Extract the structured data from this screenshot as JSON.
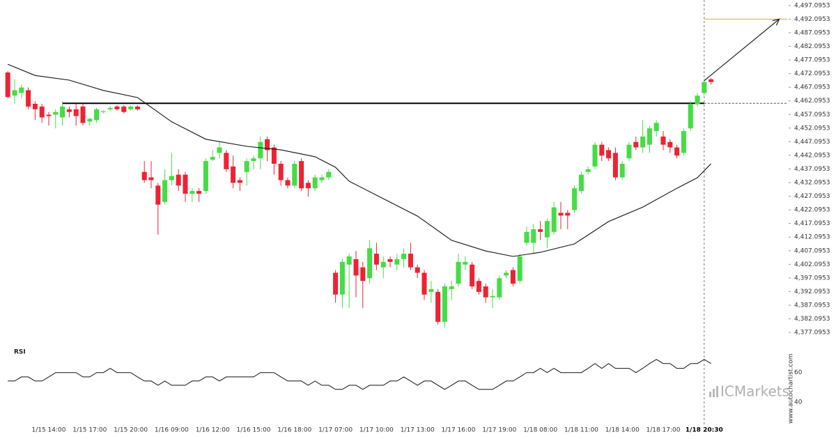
{
  "chart_data": {
    "type": "candlestick",
    "categories": [
      null,
      null,
      null,
      null,
      null,
      null,
      "1/15 14:00",
      null,
      null,
      null,
      null,
      null,
      "1/15 17:00",
      null,
      null,
      null,
      null,
      null,
      "1/15 20:00",
      null,
      null,
      null,
      null,
      null,
      "1/16 09:00",
      null,
      null,
      null,
      null,
      null,
      "1/16 12:00",
      null,
      null,
      null,
      null,
      null,
      "1/16 15:00",
      null,
      null,
      null,
      null,
      null,
      "1/16 18:00",
      null,
      null,
      null,
      null,
      null,
      "1/17 07:00",
      null,
      null,
      null,
      null,
      null,
      "1/17 10:00",
      null,
      null,
      null,
      null,
      null,
      "1/17 13:00",
      null,
      null,
      null,
      null,
      null,
      "1/17 16:00",
      null,
      null,
      null,
      null,
      null,
      "1/17 19:00",
      null,
      null,
      null,
      null,
      null,
      "1/18 08:00",
      null,
      null,
      null,
      null,
      null,
      "1/18 11:00",
      null,
      null,
      null,
      null,
      null,
      "1/18 14:00",
      null,
      null,
      null,
      null,
      null,
      "1/18 17:00",
      null,
      null,
      null,
      null,
      null,
      "1/18 20:30",
      null
    ],
    "open": [
      4472.5,
      4464,
      4465,
      4466,
      4461,
      4460,
      4457,
      4457,
      4456,
      4459,
      4459,
      4460,
      4454.5,
      4455,
      4458,
      4459,
      4460,
      4460,
      4459,
      4460,
      4436,
      4434,
      4431,
      4425,
      4433,
      4435,
      4435,
      4428,
      4429,
      4429,
      4440.5,
      4443,
      4443,
      4438,
      4433,
      4436,
      4440,
      4441,
      4448,
      4445,
      4439,
      4433,
      4431,
      4440,
      4432,
      4430,
      4433,
      4434,
      4399,
      4391,
      4402,
      4404,
      4401,
      4397,
      4406,
      4401,
      4404,
      4402,
      4404,
      4406,
      4401,
      4399,
      4392,
      4392,
      4381,
      4393,
      4395,
      4402,
      4402,
      4396,
      4394,
      4390,
      4390,
      4398,
      4400,
      4396,
      4410,
      4410,
      4415,
      4412,
      4414,
      4421,
      4421,
      4422,
      4429,
      4436,
      4438,
      4446,
      4444,
      4443,
      4434,
      4441,
      4447,
      4445,
      4446,
      4451,
      4449,
      4447,
      4445,
      4443,
      4452,
      4461,
      4465,
      4470
    ],
    "high": [
      4473,
      4470,
      4468,
      4467,
      4462,
      4461,
      4458,
      4459,
      4462,
      4460,
      4461,
      4461,
      4456,
      4459.5,
      4458.5,
      4460,
      4460.5,
      4460.5,
      4460.5,
      4460.5,
      4440,
      4440,
      4432,
      4437,
      4443,
      4437,
      4436,
      4430,
      4430,
      4441,
      4444,
      4447,
      4444,
      4442,
      4434,
      4441,
      4442,
      4449,
      4449,
      4446,
      4440,
      4434,
      4440,
      4441,
      4433,
      4435,
      4435,
      4437,
      4400,
      4404,
      4406,
      4407,
      4403,
      4411,
      4410,
      4405,
      4405,
      4406,
      4408,
      4410,
      4402,
      4400,
      4396,
      4393,
      4395,
      4396,
      4406,
      4405,
      4403,
      4397,
      4395,
      4393,
      4398,
      4400,
      4401,
      4406,
      4416,
      4417,
      4418,
      4419,
      4425,
      4425,
      4422,
      4431,
      4436,
      4438,
      4447,
      4447,
      4445,
      4445,
      4440,
      4447,
      4449,
      4455,
      4453,
      4455,
      4451,
      4448,
      4446,
      4452,
      4462,
      4465,
      4470,
      4470.5
    ],
    "low": [
      4463,
      4461,
      4463,
      4459,
      4455,
      4454,
      4453,
      4452,
      4453,
      4456,
      4453,
      4453,
      4453,
      4454,
      4457.5,
      4458.5,
      4458.5,
      4457.5,
      4458.5,
      4458.5,
      4432,
      4430,
      4413,
      4424,
      4431,
      4429,
      4425,
      4425,
      4425,
      4428,
      4440,
      4441,
      4436,
      4430,
      4429,
      4431,
      4437,
      4437,
      4440,
      4435,
      4431,
      4430,
      4430,
      4429,
      4427,
      4429,
      4432,
      4433,
      4388,
      4386,
      4386,
      4390,
      4386,
      4395,
      4400,
      4397,
      4401,
      4400,
      4401,
      4400,
      4397,
      4389,
      4388,
      4380,
      4379,
      4389,
      4394,
      4400,
      4393,
      4391,
      4388,
      4386,
      4389,
      4397,
      4394,
      4395,
      4409,
      4406,
      4411,
      4408,
      4413,
      4415,
      4415,
      4421,
      4428,
      4435,
      4437,
      4440,
      4440,
      4433,
      4433,
      4440,
      4444,
      4443,
      4443,
      4449,
      4444,
      4443,
      4441,
      4442,
      4451,
      4460,
      4464,
      4468
    ],
    "close": [
      4463.5,
      4466,
      4467,
      4460,
      4459,
      4456,
      4456.5,
      4458,
      4460,
      4458,
      4456.5,
      4454,
      4455.5,
      4459,
      4458.3,
      4459.5,
      4459,
      4458,
      4460,
      4459,
      4433,
      4433,
      4424,
      4433,
      4434.5,
      4431,
      4428,
      4429,
      4428,
      4440,
      4441.5,
      4445,
      4437,
      4432,
      4432,
      4440,
      4441,
      4447,
      4444,
      4439,
      4433,
      4431,
      4439,
      4430,
      4430,
      4434,
      4434,
      4436,
      4391,
      4403,
      4405,
      4398,
      4396,
      4408,
      4402,
      4403,
      4403,
      4404,
      4406,
      4401,
      4399,
      4391,
      4393,
      4381,
      4394,
      4394,
      4403,
      4403,
      4394,
      4392,
      4390,
      4390.5,
      4397,
      4399,
      4395,
      4405,
      4414,
      4415,
      4414,
      4418,
      4423,
      4420,
      4420,
      4430,
      4435,
      4437,
      4446,
      4442,
      4441,
      4434,
      4439,
      4446,
      4445,
      4449,
      4452,
      4454,
      4446,
      4445,
      4442,
      4451,
      4461,
      4464,
      4469,
      4469
    ],
    "up_color": "#44dd44",
    "down_color": "#ee2233",
    "ylim": [
      4373.8,
      4499.1
    ],
    "yticks": [
      {
        "value": 4377.0953,
        "label": "4,377.0953"
      },
      {
        "value": 4382.0953,
        "label": "4,382.0953"
      },
      {
        "value": 4387.0953,
        "label": "4,387.0953"
      },
      {
        "value": 4392.0953,
        "label": "4,392.0953"
      },
      {
        "value": 4397.0953,
        "label": "4,397.0953"
      },
      {
        "value": 4402.0953,
        "label": "4,402.0953"
      },
      {
        "value": 4407.0953,
        "label": "4,407.0953"
      },
      {
        "value": 4412.0953,
        "label": "4,412.0953"
      },
      {
        "value": 4417.0953,
        "label": "4,417.0953"
      },
      {
        "value": 4422.0953,
        "label": "4,422.0953"
      },
      {
        "value": 4427.0953,
        "label": "4,427.0953"
      },
      {
        "value": 4432.0953,
        "label": "4,432.0953"
      },
      {
        "value": 4437.0953,
        "label": "4,437.0953"
      },
      {
        "value": 4442.0953,
        "label": "4,442.0953"
      },
      {
        "value": 4447.0953,
        "label": "4,447.0953"
      },
      {
        "value": 4452.0953,
        "label": "4,452.0953"
      },
      {
        "value": 4457.0953,
        "label": "4,457.0953"
      },
      {
        "value": 4462.0953,
        "label": "4,462.0953"
      },
      {
        "value": 4467.0953,
        "label": "4,467.0953"
      },
      {
        "value": 4472.0953,
        "label": "4,472.0953"
      },
      {
        "value": 4477.0953,
        "label": "4,477.0953"
      },
      {
        "value": 4482.0953,
        "label": "4,482.0953"
      },
      {
        "value": 4487.0953,
        "label": "4,487.0953"
      },
      {
        "value": 4492.0953,
        "label": "4,492.0953"
      },
      {
        "value": 4497.0953,
        "label": "4,497.0953"
      }
    ],
    "ma": {
      "color": "#111111",
      "x": [
        0,
        4,
        9,
        14,
        19,
        24,
        29,
        35,
        40,
        45,
        48,
        50,
        55,
        60,
        65,
        70,
        74,
        78,
        83,
        88,
        93,
        98,
        101,
        103
      ],
      "values": [
        4475.5,
        4471.4,
        4469.7,
        4465.9,
        4463.3,
        4454.4,
        4448,
        4445.4,
        4444.1,
        4441.6,
        4437.7,
        4432.6,
        4426.2,
        4419.8,
        4410.9,
        4407,
        4405,
        4406.5,
        4409.6,
        4417.8,
        4423.1,
        4430,
        4433.9,
        4439
      ]
    },
    "level": {
      "value": 4461.2,
      "x": [
        8,
        102
      ],
      "color": "#000000"
    },
    "target": {
      "value": 4492.1,
      "color": "#e8a050"
    },
    "arrow": {
      "from": [
        102,
        4469.5
      ],
      "to": [
        113,
        4492.1
      ]
    },
    "rsi": {
      "label": "RSI",
      "color": "#111111",
      "ylim": [
        30,
        76
      ],
      "yticks": [
        40,
        60
      ],
      "values": [
        54.3,
        54.3,
        57.1,
        57.1,
        54.3,
        54.3,
        57.1,
        60,
        60,
        60,
        60,
        57.1,
        57.1,
        60,
        60,
        62.9,
        60,
        60,
        60,
        57.1,
        54.3,
        54.3,
        51.4,
        54.3,
        51.4,
        51.4,
        51.4,
        54.3,
        54.3,
        57.1,
        57.1,
        54.3,
        57.1,
        57.1,
        57.1,
        57.1,
        57.1,
        60,
        60,
        60,
        57.1,
        54.3,
        54.3,
        54.3,
        51.4,
        54.3,
        51.4,
        51.4,
        48.6,
        48.6,
        51.4,
        51.4,
        48.6,
        51.4,
        51.4,
        51.4,
        54.3,
        54.3,
        57.1,
        54.3,
        51.4,
        54.3,
        54.3,
        51.4,
        48.6,
        51.4,
        54.3,
        54.3,
        51.4,
        48.6,
        48.6,
        48.6,
        51.4,
        54.3,
        54.3,
        57.1,
        60,
        60,
        62.9,
        60,
        62.9,
        60,
        60,
        60,
        60,
        62.9,
        66.2,
        62.9,
        66.2,
        62.9,
        62.9,
        62.9,
        60,
        62.9,
        66.2,
        69,
        66.2,
        66.2,
        62.9,
        62.9,
        66.2,
        66.2,
        69,
        66.2
      ]
    },
    "watermark": "ICMarkets",
    "source": "www.autochartist.com"
  }
}
